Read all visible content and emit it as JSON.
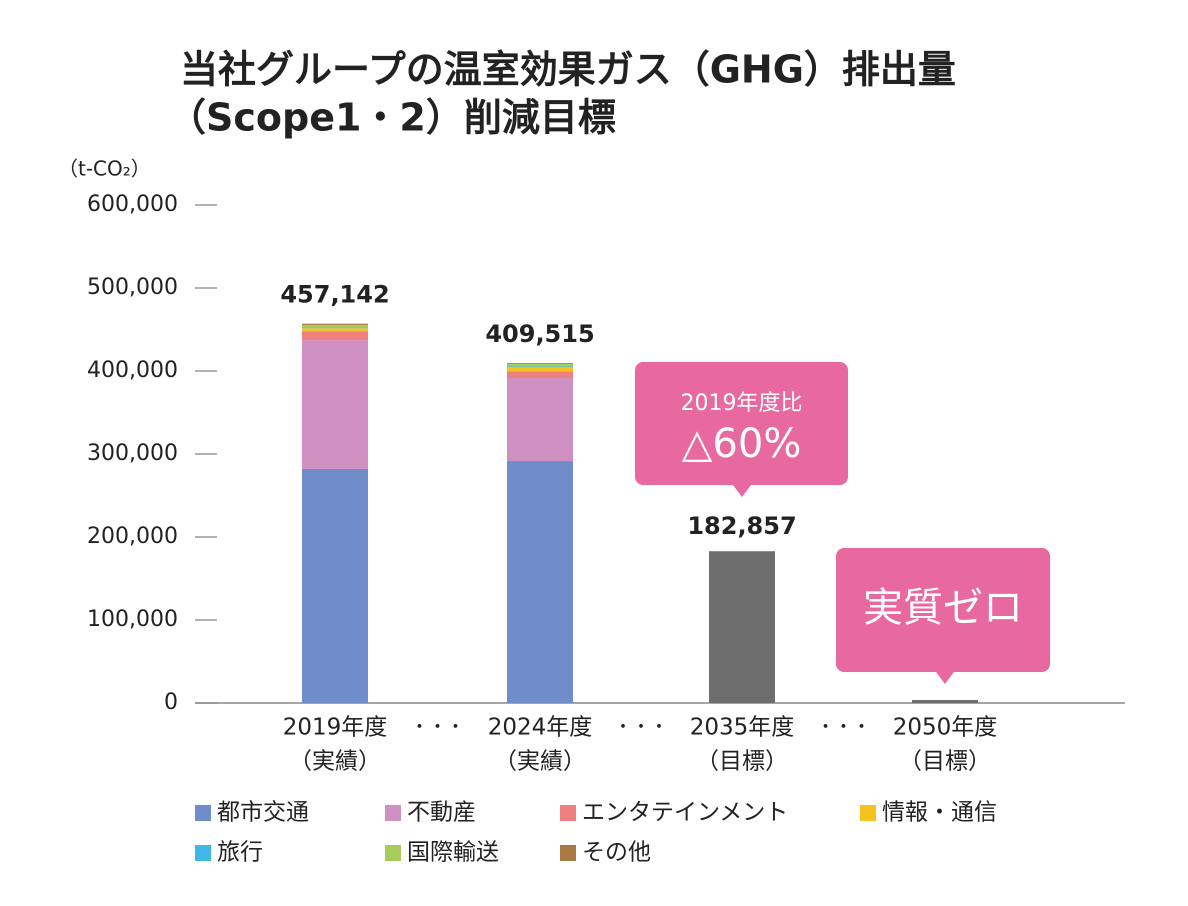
{
  "chart_data": {
    "type": "stacked-bar",
    "title": [
      "当社グループの温室効果ガス（GHG）排出量",
      "（Scope1・2）削減目標"
    ],
    "y_unit": "（t-CO₂）",
    "categories": [
      "2019年度",
      "2024年度",
      "2035年度",
      "2050年度"
    ],
    "category_notes": [
      "（実績）",
      "（実績）",
      "（目標）",
      "（目標）"
    ],
    "separator": "・・・",
    "series": [
      {
        "name": "都市交通",
        "color": "#6f8ccb",
        "values": [
          282000,
          291500,
          null,
          null
        ]
      },
      {
        "name": "不動産",
        "color": "#cf90c2",
        "values": [
          155000,
          100000,
          null,
          null
        ]
      },
      {
        "name": "エンタテインメント",
        "color": "#ee8080",
        "values": [
          11000,
          8000,
          null,
          null
        ]
      },
      {
        "name": "情報・通信",
        "color": "#f5c220",
        "values": [
          3500,
          5000,
          null,
          null
        ]
      },
      {
        "name": "旅行",
        "color": "#3fb8e8",
        "values": [
          1000,
          1000,
          null,
          null
        ]
      },
      {
        "name": "国際輸送",
        "color": "#a6cc5a",
        "values": [
          3000,
          3000,
          null,
          null
        ]
      },
      {
        "name": "その他",
        "color": "#a97a45",
        "values": [
          1500,
          1000,
          null,
          null
        ]
      }
    ],
    "totals": [
      457142,
      409515,
      null,
      null
    ],
    "value_labels": [
      "457,142",
      "409,515",
      null,
      null
    ],
    "target_values": [
      null,
      null,
      182857,
      0
    ],
    "target_value_labels": [
      null,
      null,
      "182,857",
      null
    ],
    "target_color": "#6e6e6e",
    "callouts": [
      {
        "lines": [
          "2019年度比",
          "△60%"
        ],
        "category": 2,
        "color": "#e8699f"
      },
      {
        "lines": [
          "実質ゼロ"
        ],
        "category": 3,
        "color": "#e8699f"
      }
    ],
    "ylim": [
      0,
      600000
    ],
    "yticks": [
      0,
      {
        "value": 100000,
        "label": "100,000"
      },
      {
        "value": 200000,
        "label": "200,000"
      },
      {
        "value": 300000,
        "label": "300,000"
      },
      {
        "value": 400000,
        "label": "400,000"
      },
      {
        "value": 500000,
        "label": "500,000"
      },
      {
        "value": 600000,
        "label": "600,000"
      }
    ]
  }
}
